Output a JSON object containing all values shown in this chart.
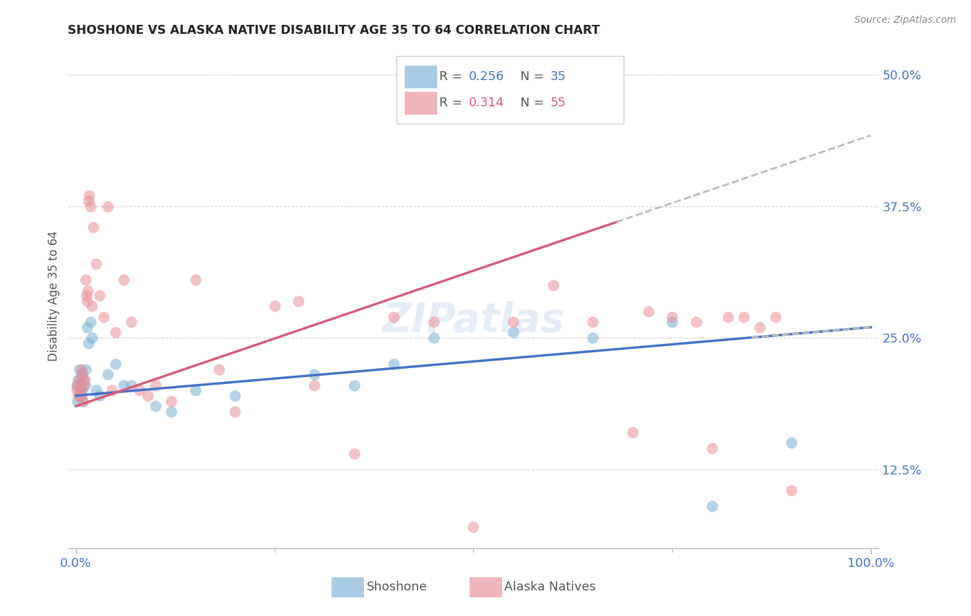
{
  "title": "SHOSHONE VS ALASKA NATIVE DISABILITY AGE 35 TO 64 CORRELATION CHART",
  "source": "Source: ZipAtlas.com",
  "ylabel": "Disability Age 35 to 64",
  "shoshone_R": "0.256",
  "shoshone_N": "35",
  "alaska_R": "0.314",
  "alaska_N": "55",
  "shoshone_color": "#7bafd4",
  "alaska_color": "#e8909a",
  "shoshone_line_color": "#4472c4",
  "alaska_line_color": "#d45d79",
  "dash_color": "#bbbbbb",
  "background_color": "#ffffff",
  "grid_color": "#cccccc",
  "ytick_color": "#4472c4",
  "xtick_color": "#4472c4",
  "shoshone_x": [
    0.1,
    0.2,
    0.3,
    0.4,
    0.5,
    0.6,
    0.7,
    0.8,
    0.9,
    1.0,
    1.1,
    1.2,
    1.4,
    1.6,
    1.8,
    2.0,
    2.5,
    3.0,
    4.0,
    5.0,
    6.0,
    7.0,
    10.0,
    12.0,
    15.0,
    20.0,
    30.0,
    35.0,
    40.0,
    45.0,
    55.0,
    65.0,
    75.0,
    80.0,
    90.0
  ],
  "shoshone_y": [
    20.5,
    19.0,
    21.0,
    22.0,
    20.0,
    19.5,
    21.5,
    20.0,
    19.0,
    21.0,
    20.5,
    22.0,
    26.0,
    24.5,
    26.5,
    25.0,
    20.0,
    19.5,
    21.5,
    22.5,
    20.5,
    20.5,
    18.5,
    18.0,
    20.0,
    19.5,
    21.5,
    20.5,
    22.5,
    25.0,
    25.5,
    25.0,
    26.5,
    9.0,
    15.0
  ],
  "alaska_x": [
    0.1,
    0.2,
    0.3,
    0.4,
    0.5,
    0.6,
    0.7,
    0.8,
    0.9,
    1.0,
    1.1,
    1.2,
    1.3,
    1.4,
    1.5,
    1.6,
    1.7,
    1.8,
    2.0,
    2.2,
    2.5,
    3.0,
    3.5,
    4.0,
    4.5,
    5.0,
    6.0,
    7.0,
    8.0,
    9.0,
    10.0,
    12.0,
    15.0,
    18.0,
    20.0,
    25.0,
    28.0,
    30.0,
    35.0,
    40.0,
    45.0,
    50.0,
    55.0,
    60.0,
    65.0,
    70.0,
    72.0,
    75.0,
    78.0,
    80.0,
    82.0,
    84.0,
    86.0,
    88.0,
    90.0
  ],
  "alaska_y": [
    20.0,
    20.5,
    19.5,
    21.0,
    20.0,
    19.5,
    22.0,
    21.5,
    19.0,
    20.5,
    21.0,
    30.5,
    29.0,
    28.5,
    29.5,
    38.0,
    38.5,
    37.5,
    28.0,
    35.5,
    32.0,
    29.0,
    27.0,
    37.5,
    20.0,
    25.5,
    30.5,
    26.5,
    20.0,
    19.5,
    20.5,
    19.0,
    30.5,
    22.0,
    18.0,
    28.0,
    28.5,
    20.5,
    14.0,
    27.0,
    26.5,
    7.0,
    26.5,
    30.0,
    26.5,
    16.0,
    27.5,
    27.0,
    26.5,
    14.5,
    27.0,
    27.0,
    26.0,
    27.0,
    10.5
  ],
  "yticks": [
    12.5,
    25.0,
    37.5,
    50.0
  ],
  "xtick_positions": [
    0,
    100
  ],
  "xtick_labels": [
    "0.0%",
    "100.0%"
  ]
}
